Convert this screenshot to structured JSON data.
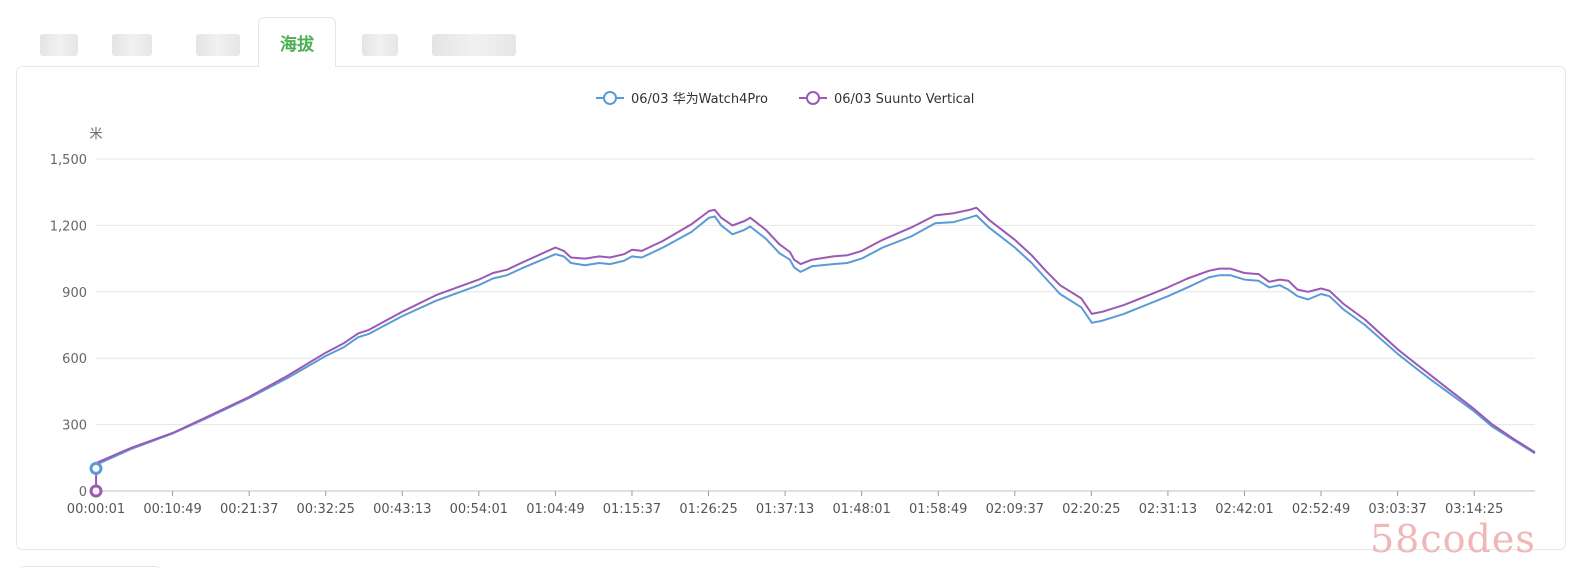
{
  "tabs": {
    "active_label": "海拔"
  },
  "chart_data": {
    "type": "line",
    "title": "",
    "ylabel": "米",
    "xlabel": "",
    "ylim": [
      0,
      1500
    ],
    "yticks": [
      0,
      300,
      600,
      900,
      1200,
      1500
    ],
    "ytick_labels": [
      "0",
      "300",
      "600",
      "900",
      "1,200",
      "1,500"
    ],
    "xticks": [
      "00:00:01",
      "00:10:49",
      "00:21:37",
      "00:32:25",
      "00:43:13",
      "00:54:01",
      "01:04:49",
      "01:15:37",
      "01:26:25",
      "01:37:13",
      "01:48:01",
      "01:58:49",
      "02:09:37",
      "02:20:25",
      "02:31:13",
      "02:42:01",
      "02:52:49",
      "03:03:37",
      "03:14:25"
    ],
    "x_unit_minutes": [
      0.0167,
      10.82,
      21.62,
      32.42,
      43.22,
      54.02,
      64.82,
      75.62,
      86.42,
      97.22,
      108.02,
      118.82,
      129.62,
      140.42,
      151.22,
      162.02,
      172.82,
      183.62,
      194.42
    ],
    "grid": true,
    "legend_position": "top-center",
    "series": [
      {
        "name": "06/03 华为Watch4Pro",
        "color": "#5b9bd5",
        "start_marker_value": 102,
        "points": [
          [
            0.0167,
            102
          ],
          [
            0.3,
            122
          ],
          [
            5,
            190
          ],
          [
            10.82,
            260
          ],
          [
            15,
            320
          ],
          [
            21.62,
            420
          ],
          [
            27,
            510
          ],
          [
            32.42,
            610
          ],
          [
            35,
            650
          ],
          [
            37,
            695
          ],
          [
            38.5,
            710
          ],
          [
            43.22,
            790
          ],
          [
            48,
            860
          ],
          [
            54.02,
            930
          ],
          [
            56,
            960
          ],
          [
            58,
            975
          ],
          [
            60,
            1005
          ],
          [
            64.82,
            1070
          ],
          [
            66,
            1060
          ],
          [
            67,
            1030
          ],
          [
            69,
            1020
          ],
          [
            71,
            1030
          ],
          [
            72.5,
            1025
          ],
          [
            74.5,
            1040
          ],
          [
            75.62,
            1060
          ],
          [
            77,
            1055
          ],
          [
            80,
            1100
          ],
          [
            84,
            1170
          ],
          [
            86.5,
            1235
          ],
          [
            87.3,
            1240
          ],
          [
            88.2,
            1200
          ],
          [
            89.8,
            1160
          ],
          [
            91.5,
            1180
          ],
          [
            92.3,
            1195
          ],
          [
            94.5,
            1140
          ],
          [
            96.4,
            1075
          ],
          [
            97.9,
            1045
          ],
          [
            98.5,
            1010
          ],
          [
            99.4,
            990
          ],
          [
            101,
            1015
          ],
          [
            104,
            1025
          ],
          [
            106,
            1030
          ],
          [
            108.02,
            1050
          ],
          [
            111,
            1100
          ],
          [
            115,
            1150
          ],
          [
            118.4,
            1210
          ],
          [
            121,
            1215
          ],
          [
            123.2,
            1235
          ],
          [
            124.2,
            1245
          ],
          [
            126,
            1190
          ],
          [
            129.62,
            1100
          ],
          [
            132,
            1030
          ],
          [
            134,
            960
          ],
          [
            136,
            890
          ],
          [
            139,
            830
          ],
          [
            140.5,
            760
          ],
          [
            142,
            770
          ],
          [
            145,
            800
          ],
          [
            151.22,
            880
          ],
          [
            154,
            920
          ],
          [
            157,
            965
          ],
          [
            158.5,
            975
          ],
          [
            160,
            975
          ],
          [
            162.02,
            955
          ],
          [
            164,
            950
          ],
          [
            165.5,
            920
          ],
          [
            167,
            930
          ],
          [
            168.2,
            910
          ],
          [
            169.5,
            880
          ],
          [
            171,
            865
          ],
          [
            172.82,
            890
          ],
          [
            174,
            880
          ],
          [
            176,
            820
          ],
          [
            179,
            750
          ],
          [
            183.62,
            620
          ],
          [
            186,
            560
          ],
          [
            188,
            510
          ],
          [
            191,
            440
          ],
          [
            194.42,
            360
          ],
          [
            197,
            290
          ],
          [
            200,
            230
          ],
          [
            203,
            170
          ]
        ]
      },
      {
        "name": "06/03 Suunto Vertical",
        "color": "#9b59b6",
        "start_marker_value": 0,
        "points": [
          [
            0.0167,
            0
          ],
          [
            0.05,
            125
          ],
          [
            0.3,
            130
          ],
          [
            5,
            195
          ],
          [
            10.82,
            262
          ],
          [
            15,
            325
          ],
          [
            21.62,
            425
          ],
          [
            27,
            520
          ],
          [
            32.42,
            625
          ],
          [
            35,
            668
          ],
          [
            37,
            712
          ],
          [
            38.5,
            728
          ],
          [
            43.22,
            810
          ],
          [
            48,
            885
          ],
          [
            54.02,
            955
          ],
          [
            56,
            985
          ],
          [
            58,
            1000
          ],
          [
            60,
            1030
          ],
          [
            64.82,
            1100
          ],
          [
            66,
            1085
          ],
          [
            67,
            1055
          ],
          [
            69,
            1050
          ],
          [
            71,
            1060
          ],
          [
            72.5,
            1055
          ],
          [
            74.5,
            1070
          ],
          [
            75.62,
            1090
          ],
          [
            77,
            1085
          ],
          [
            80,
            1130
          ],
          [
            84,
            1205
          ],
          [
            86.5,
            1265
          ],
          [
            87.3,
            1270
          ],
          [
            88.2,
            1235
          ],
          [
            89.8,
            1200
          ],
          [
            91.5,
            1220
          ],
          [
            92.3,
            1235
          ],
          [
            94.5,
            1180
          ],
          [
            96.4,
            1115
          ],
          [
            97.9,
            1080
          ],
          [
            98.5,
            1045
          ],
          [
            99.4,
            1025
          ],
          [
            101,
            1045
          ],
          [
            104,
            1060
          ],
          [
            106,
            1065
          ],
          [
            108.02,
            1085
          ],
          [
            111,
            1135
          ],
          [
            115,
            1190
          ],
          [
            118.4,
            1245
          ],
          [
            121,
            1255
          ],
          [
            123.2,
            1270
          ],
          [
            124.2,
            1280
          ],
          [
            126,
            1225
          ],
          [
            129.62,
            1135
          ],
          [
            132,
            1065
          ],
          [
            134,
            995
          ],
          [
            136,
            930
          ],
          [
            139,
            870
          ],
          [
            140.5,
            800
          ],
          [
            142,
            810
          ],
          [
            145,
            840
          ],
          [
            151.22,
            920
          ],
          [
            154,
            960
          ],
          [
            157,
            995
          ],
          [
            158.5,
            1005
          ],
          [
            160,
            1005
          ],
          [
            162.02,
            985
          ],
          [
            164,
            980
          ],
          [
            165.5,
            945
          ],
          [
            167,
            955
          ],
          [
            168.2,
            950
          ],
          [
            169.5,
            910
          ],
          [
            171,
            900
          ],
          [
            172.82,
            915
          ],
          [
            174,
            905
          ],
          [
            176,
            845
          ],
          [
            179,
            775
          ],
          [
            183.62,
            640
          ],
          [
            186,
            580
          ],
          [
            188,
            530
          ],
          [
            191,
            455
          ],
          [
            194.42,
            370
          ],
          [
            197,
            300
          ],
          [
            200,
            235
          ],
          [
            203,
            175
          ]
        ]
      }
    ]
  },
  "watermark": "58codes"
}
